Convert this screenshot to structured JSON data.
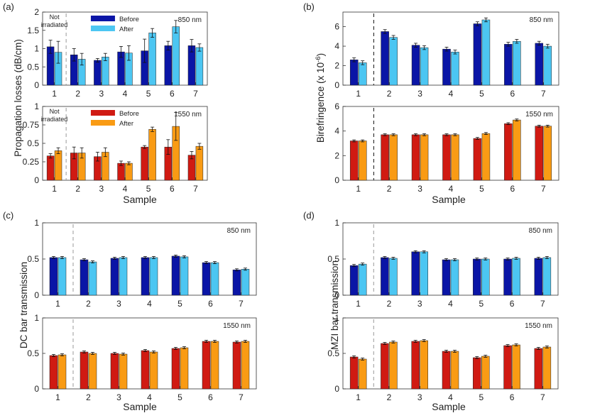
{
  "colors": {
    "before_850": "#0a15a6",
    "after_850": "#4cc6f2",
    "before_1550": "#d01a12",
    "after_1550": "#f99b14",
    "divider": "#999999",
    "error_bar": "#111111"
  },
  "chart_data": [
    {
      "panel": "(a)",
      "type": "bar",
      "ylabel": "Propagation losses (dB/cm)",
      "xlabel": "Sample",
      "categories": [
        "1",
        "2",
        "3",
        "4",
        "5",
        "6",
        "7"
      ],
      "legend": [
        "Before",
        "After"
      ],
      "annotation": [
        "Not",
        "irradiated"
      ],
      "subplots": [
        {
          "wavelength": "850 nm",
          "ylim": [
            0,
            2
          ],
          "yticks": [
            0,
            0.5,
            1,
            1.5,
            2
          ],
          "ytick_labels": [
            "0",
            "0.5",
            "1",
            "1.5",
            "2"
          ],
          "series": [
            {
              "name": "Before",
              "values": [
                1.05,
                0.83,
                0.68,
                0.91,
                0.94,
                1.08,
                1.08
              ],
              "errors": [
                0.18,
                0.17,
                0.05,
                0.15,
                0.32,
                0.12,
                0.17
              ]
            },
            {
              "name": "After",
              "values": [
                0.9,
                0.71,
                0.77,
                0.88,
                1.43,
                1.6,
                1.03
              ],
              "errors": [
                0.3,
                0.16,
                0.1,
                0.2,
                0.12,
                0.17,
                0.1
              ]
            }
          ]
        },
        {
          "wavelength": "1550 nm",
          "ylim": [
            0,
            1
          ],
          "yticks": [
            0,
            0.25,
            0.5,
            0.75,
            1
          ],
          "ytick_labels": [
            "0",
            "0.25",
            "0.5",
            "0.75",
            "1"
          ],
          "series": [
            {
              "name": "Before",
              "values": [
                0.33,
                0.37,
                0.32,
                0.23,
                0.45,
                0.45,
                0.34
              ],
              "errors": [
                0.03,
                0.08,
                0.06,
                0.03,
                0.02,
                0.1,
                0.05
              ]
            },
            {
              "name": "After",
              "values": [
                0.4,
                0.37,
                0.38,
                0.23,
                0.69,
                0.73,
                0.46
              ],
              "errors": [
                0.04,
                0.07,
                0.06,
                0.02,
                0.03,
                0.19,
                0.04
              ]
            }
          ]
        }
      ]
    },
    {
      "panel": "(b)",
      "type": "bar",
      "ylabel": "Birefringence (x 10",
      "ylabel_exp": "-6",
      "ylabel_close": ")",
      "xlabel": "Sample",
      "categories": [
        "1",
        "2",
        "3",
        "4",
        "5",
        "6",
        "7"
      ],
      "subplots": [
        {
          "wavelength": "850 nm",
          "ylim": [
            0,
            7.5
          ],
          "yticks": [
            0,
            2,
            4,
            6
          ],
          "ytick_labels": [
            "0",
            "2",
            "4",
            "6"
          ],
          "series": [
            {
              "name": "Before",
              "values": [
                2.6,
                5.5,
                4.1,
                3.7,
                6.3,
                4.2,
                4.3
              ],
              "errors": [
                0.2,
                0.2,
                0.2,
                0.2,
                0.2,
                0.2,
                0.2
              ]
            },
            {
              "name": "After",
              "values": [
                2.3,
                4.9,
                3.85,
                3.4,
                6.7,
                4.5,
                4.0
              ],
              "errors": [
                0.2,
                0.2,
                0.2,
                0.2,
                0.2,
                0.2,
                0.2
              ]
            }
          ]
        },
        {
          "wavelength": "1550 nm",
          "ylim": [
            0,
            6
          ],
          "yticks": [
            0,
            2,
            4,
            6
          ],
          "ytick_labels": [
            "0",
            "2",
            "4",
            "6"
          ],
          "series": [
            {
              "name": "Before",
              "values": [
                3.2,
                3.7,
                3.7,
                3.7,
                3.4,
                4.6,
                4.4
              ],
              "errors": [
                0.08,
                0.08,
                0.08,
                0.08,
                0.08,
                0.08,
                0.08
              ]
            },
            {
              "name": "After",
              "values": [
                3.2,
                3.7,
                3.7,
                3.7,
                3.8,
                4.9,
                4.4
              ],
              "errors": [
                0.08,
                0.08,
                0.08,
                0.08,
                0.08,
                0.08,
                0.08
              ]
            }
          ]
        }
      ]
    },
    {
      "panel": "(c)",
      "type": "bar",
      "ylabel": "DC bar transmission",
      "xlabel": "Sample",
      "categories": [
        "1",
        "2",
        "3",
        "4",
        "5",
        "6",
        "7"
      ],
      "subplots": [
        {
          "wavelength": "850 nm",
          "ylim": [
            0,
            1
          ],
          "yticks": [
            0,
            0.5,
            1
          ],
          "ytick_labels": [
            "0",
            "0.5",
            "1"
          ],
          "series": [
            {
              "name": "Before",
              "values": [
                0.52,
                0.49,
                0.51,
                0.52,
                0.54,
                0.45,
                0.35
              ],
              "errors": [
                0.015,
                0.015,
                0.015,
                0.015,
                0.015,
                0.015,
                0.015
              ]
            },
            {
              "name": "After",
              "values": [
                0.52,
                0.46,
                0.52,
                0.52,
                0.53,
                0.45,
                0.36
              ],
              "errors": [
                0.015,
                0.015,
                0.015,
                0.015,
                0.015,
                0.015,
                0.015
              ]
            }
          ]
        },
        {
          "wavelength": "1550 nm",
          "ylim": [
            0,
            1
          ],
          "yticks": [
            0,
            0.5,
            1
          ],
          "ytick_labels": [
            "0",
            "0.5",
            "1"
          ],
          "series": [
            {
              "name": "Before",
              "values": [
                0.47,
                0.52,
                0.5,
                0.54,
                0.57,
                0.67,
                0.66
              ],
              "errors": [
                0.015,
                0.015,
                0.015,
                0.015,
                0.015,
                0.015,
                0.015
              ]
            },
            {
              "name": "After",
              "values": [
                0.48,
                0.5,
                0.49,
                0.52,
                0.58,
                0.67,
                0.67
              ],
              "errors": [
                0.015,
                0.015,
                0.015,
                0.015,
                0.015,
                0.015,
                0.015
              ]
            }
          ]
        }
      ]
    },
    {
      "panel": "(d)",
      "type": "bar",
      "ylabel": "MZI bar transmission",
      "xlabel": "Sample",
      "categories": [
        "1",
        "2",
        "3",
        "4",
        "5",
        "6",
        "7"
      ],
      "subplots": [
        {
          "wavelength": "850 nm",
          "ylim": [
            0,
            1
          ],
          "yticks": [
            0,
            0.5,
            1
          ],
          "ytick_labels": [
            "0",
            "0.5",
            "1"
          ],
          "series": [
            {
              "name": "Before",
              "values": [
                0.41,
                0.52,
                0.6,
                0.49,
                0.5,
                0.5,
                0.51
              ],
              "errors": [
                0.015,
                0.015,
                0.015,
                0.015,
                0.015,
                0.015,
                0.015
              ]
            },
            {
              "name": "After",
              "values": [
                0.43,
                0.51,
                0.6,
                0.49,
                0.5,
                0.51,
                0.52
              ],
              "errors": [
                0.015,
                0.015,
                0.015,
                0.015,
                0.015,
                0.015,
                0.015
              ]
            }
          ]
        },
        {
          "wavelength": "1550 nm",
          "ylim": [
            0,
            1
          ],
          "yticks": [
            0,
            0.5,
            1
          ],
          "ytick_labels": [
            "0",
            "0.5",
            "1"
          ],
          "series": [
            {
              "name": "Before",
              "values": [
                0.45,
                0.64,
                0.67,
                0.53,
                0.44,
                0.61,
                0.57
              ],
              "errors": [
                0.015,
                0.015,
                0.015,
                0.015,
                0.015,
                0.015,
                0.015
              ]
            },
            {
              "name": "After",
              "values": [
                0.42,
                0.66,
                0.68,
                0.53,
                0.46,
                0.62,
                0.59
              ],
              "errors": [
                0.015,
                0.015,
                0.015,
                0.015,
                0.015,
                0.015,
                0.015
              ]
            }
          ]
        }
      ]
    }
  ]
}
